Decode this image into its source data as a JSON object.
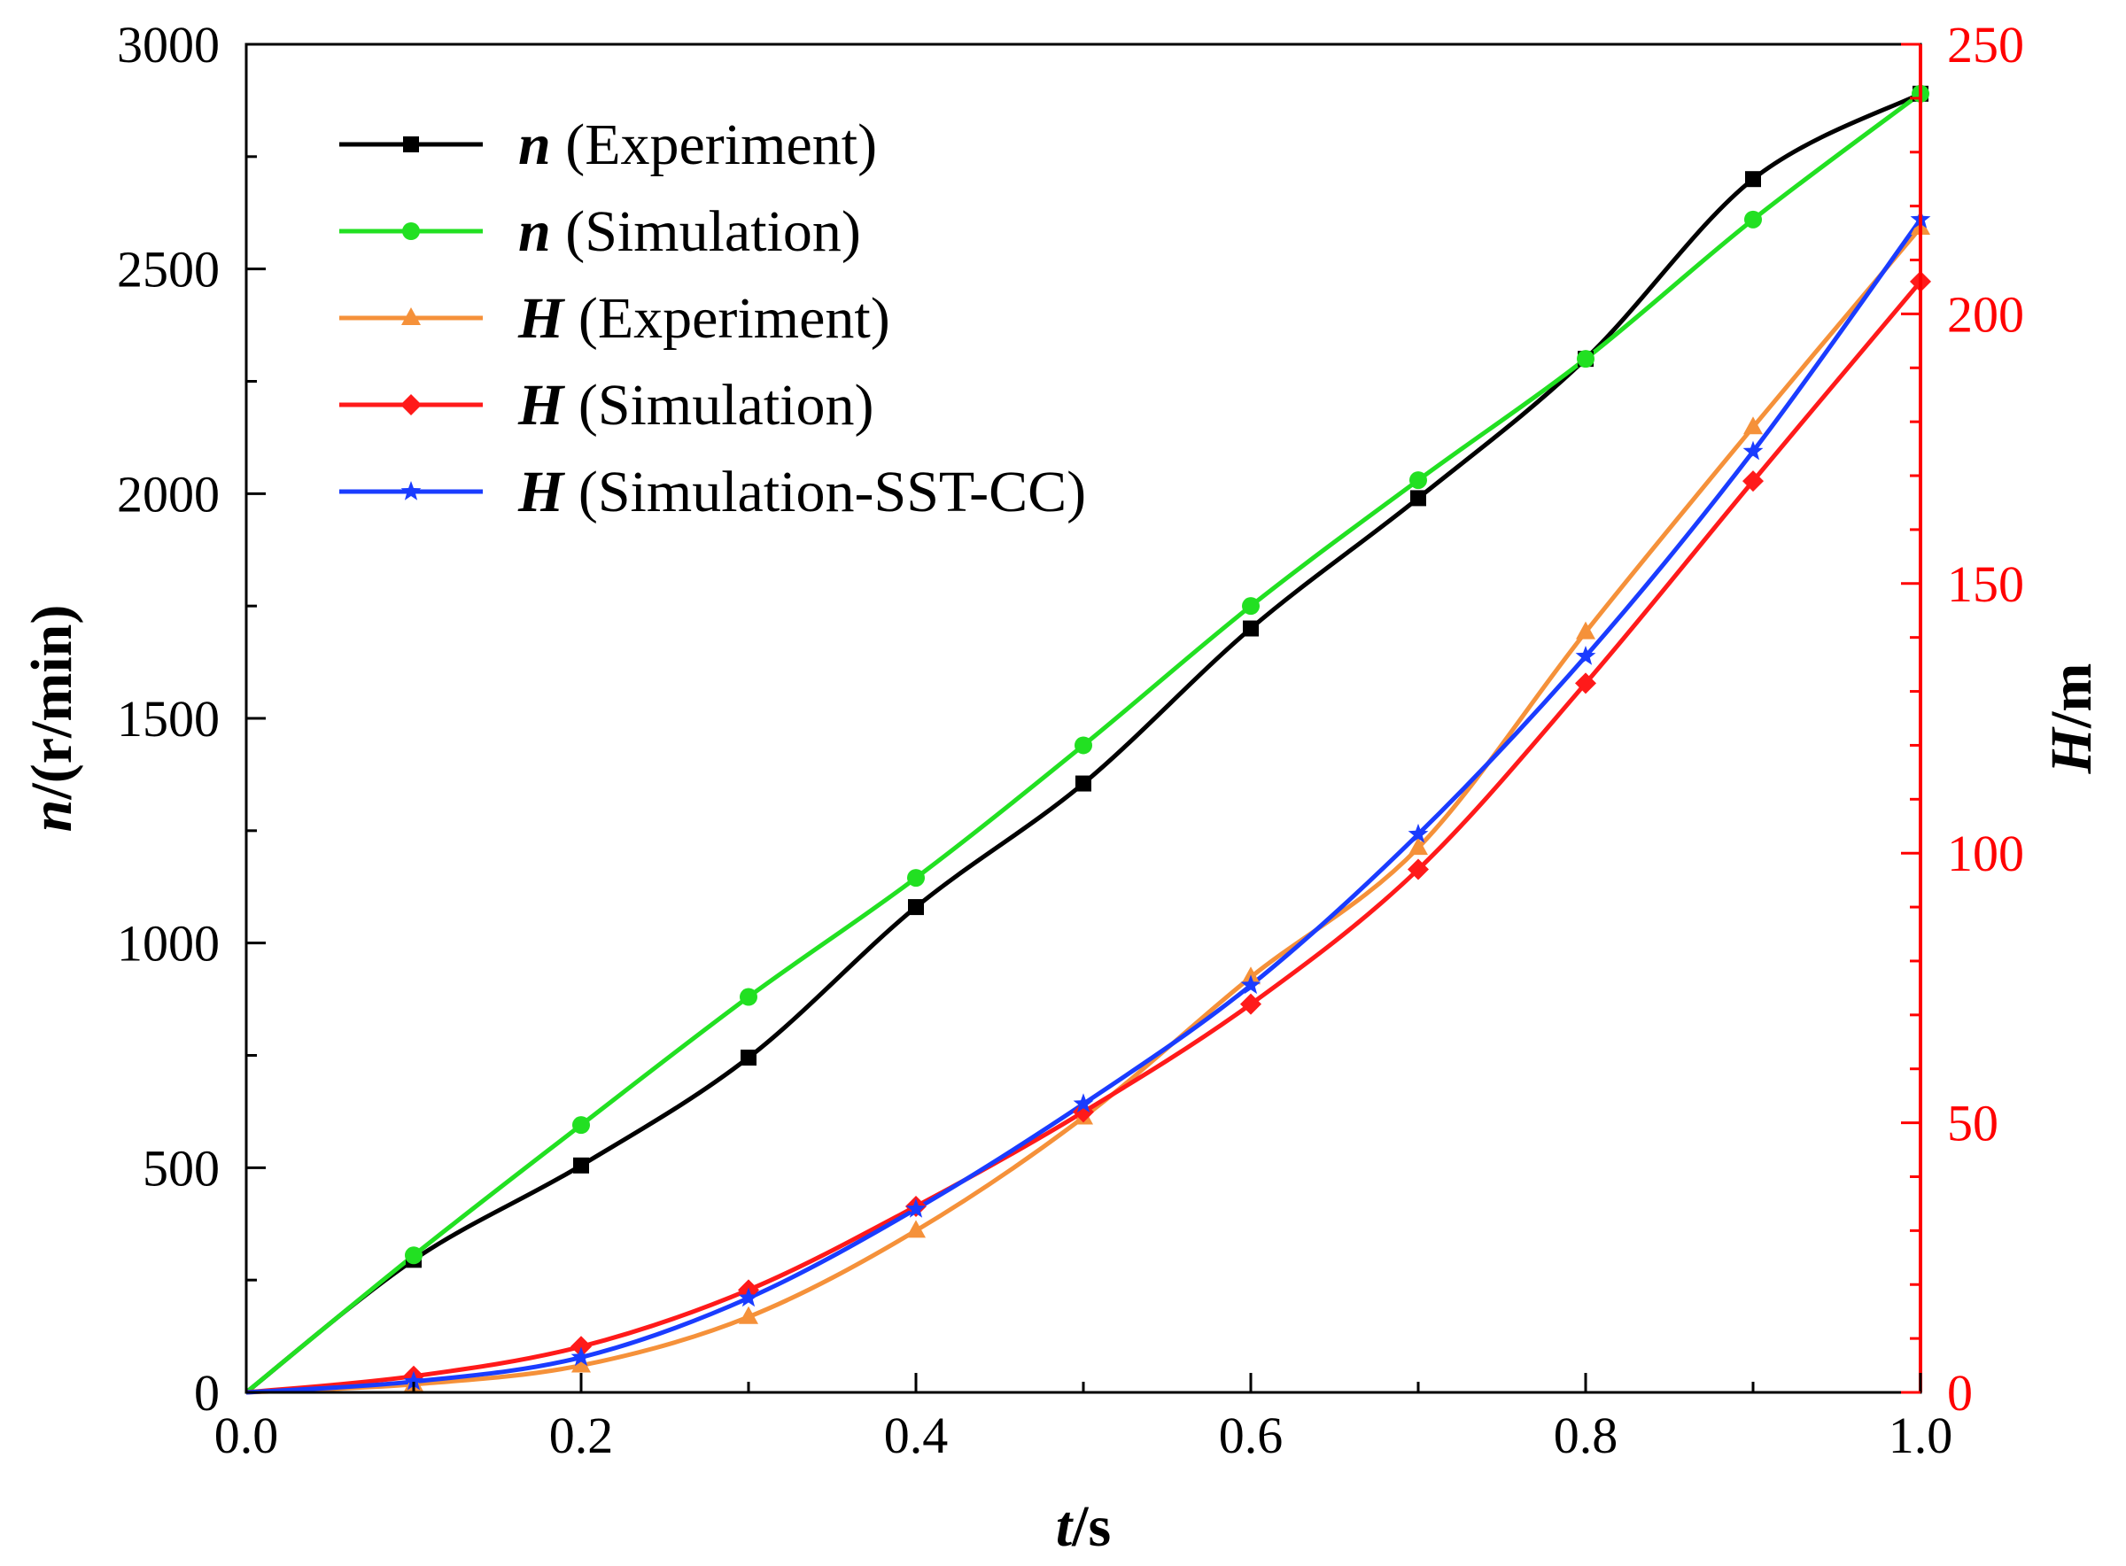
{
  "chart_data": {
    "type": "line",
    "title": "",
    "xlabel_symbol": "t",
    "xlabel_unit": "/s",
    "ylabel_symbol": "n",
    "ylabel_unit": "/(r/min)",
    "y2label_symbol": "H",
    "y2label_unit": "/m",
    "xlim": [
      0,
      1.0
    ],
    "ylim": [
      0,
      3000
    ],
    "y2lim": [
      0,
      250
    ],
    "x_ticks": [
      "0.0",
      "0.2",
      "0.4",
      "0.6",
      "0.8",
      "1.0"
    ],
    "y_ticks": [
      "0",
      "500",
      "1000",
      "1500",
      "2000",
      "2500",
      "3000"
    ],
    "y2_ticks": [
      "0",
      "50",
      "100",
      "150",
      "200",
      "250"
    ],
    "grid": false,
    "legend_position": "top-left",
    "right_axis_color": "#ff0000",
    "series": [
      {
        "name_symbol": "n",
        "name_text": " (Experiment)",
        "axis": "left",
        "color": "#000000",
        "marker": "square",
        "x": [
          0,
          0.1,
          0.2,
          0.3,
          0.4,
          0.5,
          0.6,
          0.7,
          0.8,
          0.9,
          1.0
        ],
        "values": [
          0,
          295,
          505,
          745,
          1080,
          1355,
          1700,
          1990,
          2300,
          2700,
          2890
        ]
      },
      {
        "name_symbol": "n",
        "name_text": " (Simulation)",
        "axis": "left",
        "color": "#22e022",
        "marker": "circle",
        "x": [
          0,
          0.1,
          0.2,
          0.3,
          0.4,
          0.5,
          0.6,
          0.7,
          0.8,
          0.9,
          1.0
        ],
        "values": [
          0,
          305,
          595,
          880,
          1145,
          1440,
          1750,
          2030,
          2300,
          2610,
          2890
        ]
      },
      {
        "name_symbol": "H",
        "name_text": " (Experiment)",
        "axis": "right",
        "color": "#f5913a",
        "marker": "triangle",
        "x": [
          0,
          0.1,
          0.2,
          0.3,
          0.4,
          0.5,
          0.6,
          0.7,
          0.8,
          0.9,
          1.0
        ],
        "values": [
          0,
          1.5,
          5,
          14,
          30,
          51,
          77,
          101,
          141,
          179,
          216
        ]
      },
      {
        "name_symbol": "H",
        "name_text": " (Simulation)",
        "axis": "right",
        "color": "#ff1a1a",
        "marker": "diamond",
        "x": [
          0,
          0.1,
          0.2,
          0.3,
          0.4,
          0.5,
          0.6,
          0.7,
          0.8,
          0.9,
          1.0
        ],
        "values": [
          0,
          3,
          8.5,
          19,
          34.5,
          52,
          72,
          97,
          131.5,
          169,
          206
        ]
      },
      {
        "name_symbol": "H",
        "name_text": " (Simulation-SST-CC)",
        "axis": "right",
        "color": "#1a3cff",
        "marker": "star",
        "x": [
          0,
          0.1,
          0.2,
          0.3,
          0.4,
          0.5,
          0.6,
          0.7,
          0.8,
          0.9,
          1.0
        ],
        "values": [
          0,
          2,
          6.5,
          17.5,
          34,
          53.5,
          75.5,
          103.5,
          136.5,
          174.5,
          217.5
        ]
      }
    ]
  }
}
